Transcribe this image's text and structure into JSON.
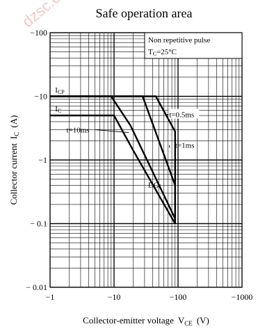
{
  "watermark": "dzsc.com",
  "chart_data": {
    "type": "line",
    "title": "Safe operation area",
    "xlabel": "Collector-emitter voltage",
    "xlabel_symbol": "V",
    "xlabel_sub": "CE",
    "xlabel_unit": "(V)",
    "ylabel": "Collector current",
    "ylabel_symbol": "I",
    "ylabel_sub": "C",
    "ylabel_unit": "(A)",
    "x_scale": "log",
    "y_scale": "log",
    "xlim": [
      -1,
      -1000
    ],
    "ylim": [
      -0.01,
      -100
    ],
    "grid": true,
    "x_ticks": [
      {
        "value": -1,
        "label": "−1"
      },
      {
        "value": -10,
        "label": "−10"
      },
      {
        "value": -100,
        "label": "−100"
      },
      {
        "value": -1000,
        "label": "−1000"
      }
    ],
    "y_ticks": [
      {
        "value": -100,
        "label": "−100"
      },
      {
        "value": -10,
        "label": "−10"
      },
      {
        "value": -1,
        "label": "−1"
      },
      {
        "value": -0.1,
        "label": "− 0.1"
      },
      {
        "value": -0.01,
        "label": "− 0.01"
      }
    ],
    "legend_box": {
      "line1": "Non repetitive pulse",
      "line2_prefix": "T",
      "line2_sub": "C",
      "line2_suffix": "=25°C",
      "placement": "top-right"
    },
    "series": [
      {
        "name": "t=0.5ms",
        "points": [
          [
            -1,
            -10
          ],
          [
            -45,
            -10
          ],
          [
            -90,
            -2.8
          ],
          [
            -90,
            -0.1
          ]
        ]
      },
      {
        "name": "t=1ms",
        "points": [
          [
            -1,
            -10
          ],
          [
            -28,
            -10
          ],
          [
            -90,
            -0.4
          ],
          [
            -90,
            -0.1
          ]
        ]
      },
      {
        "name": "t=10ms",
        "points": [
          [
            -1,
            -10
          ],
          [
            -9,
            -10
          ],
          [
            -18,
            -3.5
          ],
          [
            -90,
            -0.12
          ],
          [
            -90,
            -0.1
          ]
        ]
      },
      {
        "name": "DC",
        "points": [
          [
            -1,
            -5
          ],
          [
            -10,
            -5
          ],
          [
            -20,
            -1.4
          ],
          [
            -90,
            -0.1
          ]
        ]
      }
    ],
    "annotations": [
      {
        "id": "icp",
        "prefix": "I",
        "sub": "CP",
        "x": -1.2,
        "y": -11.5
      },
      {
        "id": "ic",
        "prefix": "I",
        "sub": "C",
        "x": -1.2,
        "y": -5.8
      },
      {
        "id": "t05",
        "text": "t=0.5ms",
        "x": -73,
        "y": -4.7,
        "line_to": [
          -66,
          -5.2
        ]
      },
      {
        "id": "t1",
        "text": "t=1ms",
        "x": -180,
        "y": -1.55,
        "line_to": [
          -74,
          -1.55
        ]
      },
      {
        "id": "t10",
        "text": "t=10ms",
        "x": -1.8,
        "y": -2.7,
        "line_to": [
          -17,
          -2.7
        ]
      },
      {
        "id": "dc",
        "text": "DC",
        "x": -34,
        "y": -0.37,
        "line_to": [
          -46,
          -0.37
        ]
      }
    ]
  }
}
